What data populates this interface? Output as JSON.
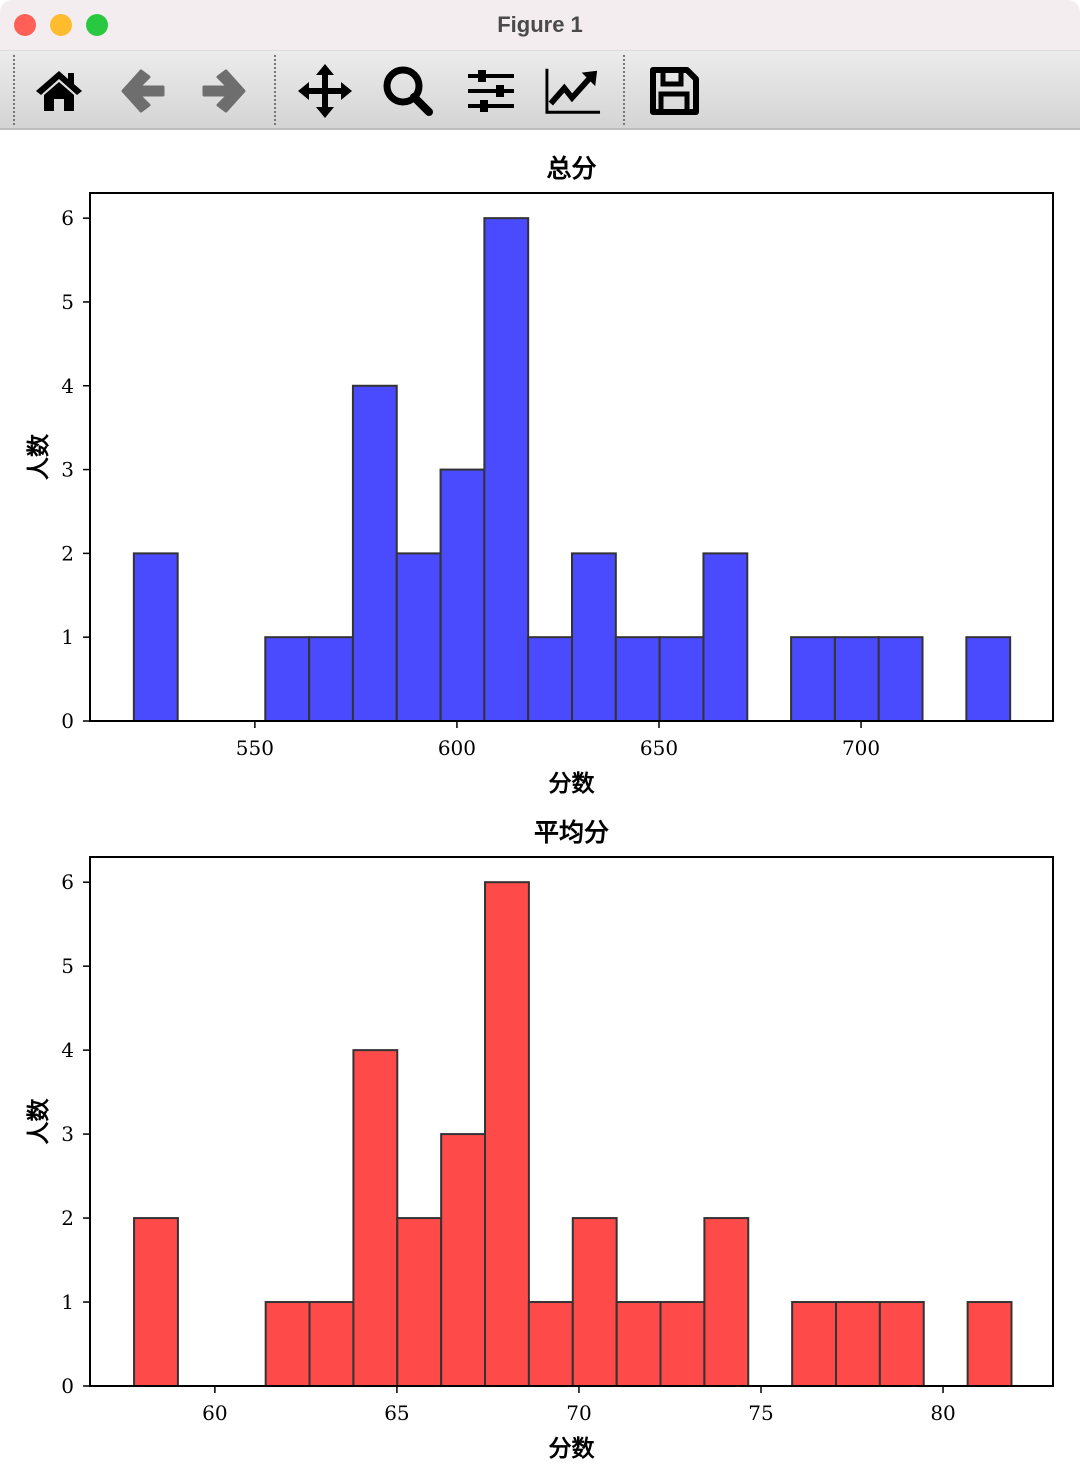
{
  "window": {
    "title": "Figure 1"
  },
  "toolbar": {
    "buttons": [
      "home-icon",
      "back-icon",
      "forward-icon",
      "pan-icon",
      "zoom-icon",
      "configure-subplots-icon",
      "edit-axis-icon",
      "save-icon"
    ]
  },
  "chart_data": [
    {
      "type": "bar",
      "title": "总分",
      "xlabel": "分数",
      "ylabel": "人数",
      "bins": 20,
      "bin_range": [
        520.05,
        736.9
      ],
      "counts": [
        2,
        0,
        0,
        1,
        1,
        4,
        2,
        3,
        6,
        1,
        2,
        1,
        1,
        2,
        0,
        1,
        1,
        1,
        0,
        1
      ],
      "xlim": [
        509.2,
        747.5
      ],
      "ylim": [
        0,
        6.3
      ],
      "xticks": [
        550,
        600,
        650,
        700
      ],
      "yticks": [
        0,
        1,
        2,
        3,
        4,
        5,
        6
      ],
      "color": "#4a4aff",
      "edgecolor": "#333333",
      "grid": false
    },
    {
      "type": "bar",
      "title": "平均分",
      "xlabel": "分数",
      "ylabel": "人数",
      "bins": 20,
      "bin_range": [
        57.78,
        81.88
      ],
      "counts": [
        2,
        0,
        0,
        1,
        1,
        4,
        2,
        3,
        6,
        1,
        2,
        1,
        1,
        2,
        0,
        1,
        1,
        1,
        0,
        1
      ],
      "xlim": [
        56.57,
        83.02
      ],
      "ylim": [
        0,
        6.3
      ],
      "xticks": [
        60,
        65,
        70,
        75,
        80
      ],
      "yticks": [
        0,
        1,
        2,
        3,
        4,
        5,
        6
      ],
      "color": "#ff4a4a",
      "edgecolor": "#333333",
      "grid": false
    }
  ]
}
